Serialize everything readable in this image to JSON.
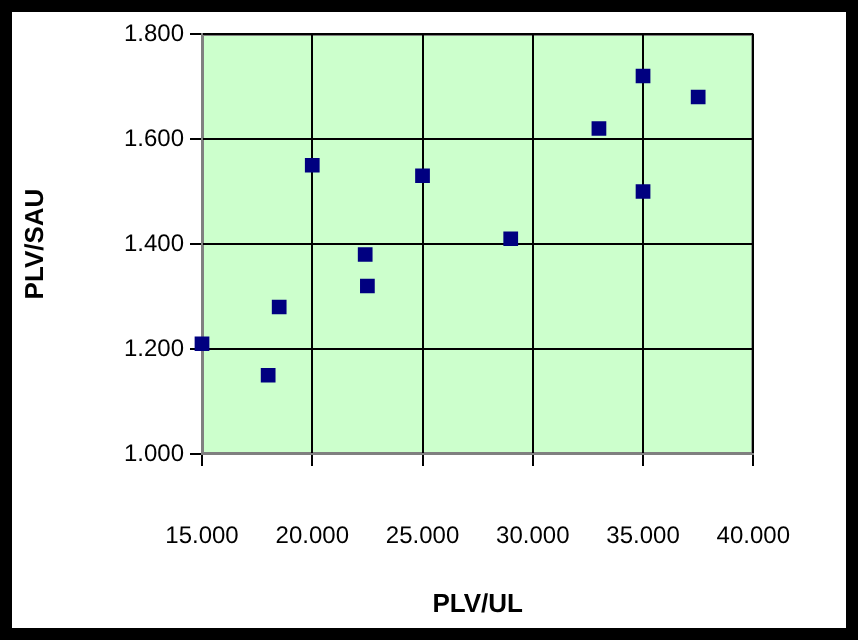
{
  "chart_data": {
    "type": "scatter",
    "xlabel": "PLV/UL",
    "ylabel": "PLV/SAU",
    "x": [
      15.0,
      18.0,
      18.5,
      20.0,
      22.4,
      22.5,
      25.0,
      29.0,
      33.0,
      35.0,
      35.0,
      37.5
    ],
    "values": [
      1.21,
      1.15,
      1.28,
      1.55,
      1.38,
      1.32,
      1.53,
      1.41,
      1.62,
      1.72,
      1.5,
      1.68
    ],
    "color": "#000080",
    "marker": "square",
    "grid": true,
    "legend": false,
    "xlim": [
      15,
      40
    ],
    "ylim": [
      1.0,
      1.8
    ],
    "xticks": [
      {
        "value": 15,
        "label": "15.000"
      },
      {
        "value": 20,
        "label": "20.000"
      },
      {
        "value": 25,
        "label": "25.000"
      },
      {
        "value": 30,
        "label": "30.000"
      },
      {
        "value": 35,
        "label": "35.000"
      },
      {
        "value": 40,
        "label": "40.000"
      }
    ],
    "yticks": [
      {
        "value": 1.0,
        "label": "1.000"
      },
      {
        "value": 1.2,
        "label": "1.200"
      },
      {
        "value": 1.4,
        "label": "1.400"
      },
      {
        "value": 1.6,
        "label": "1.600"
      },
      {
        "value": 1.8,
        "label": "1.800"
      }
    ]
  }
}
